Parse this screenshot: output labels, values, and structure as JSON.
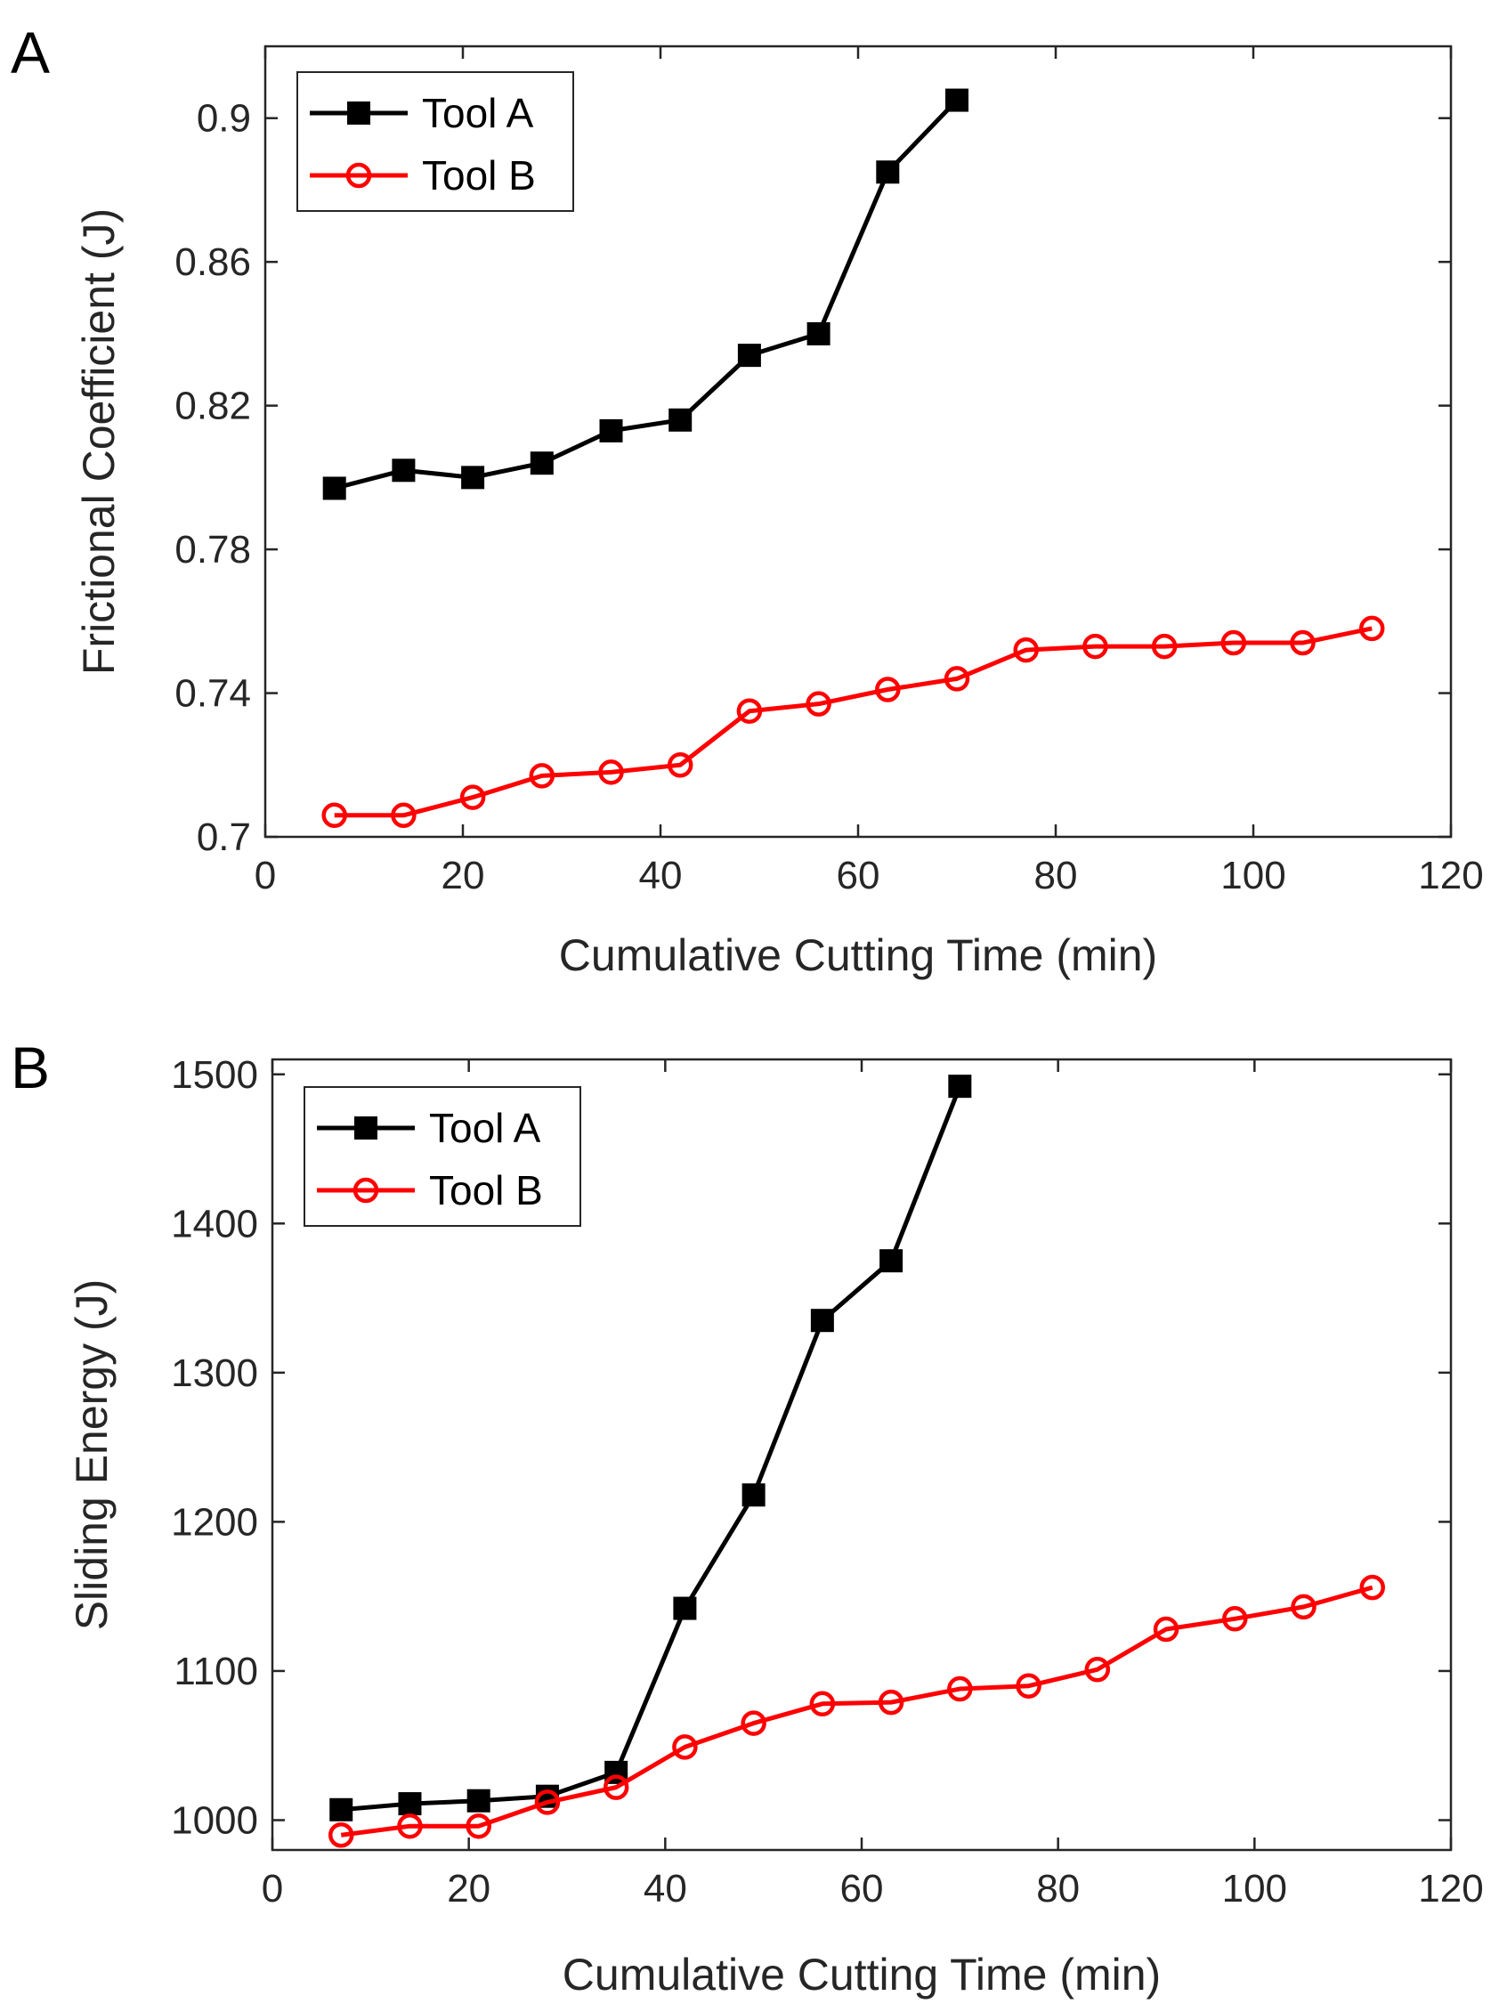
{
  "chart_data": [
    {
      "type": "line",
      "panel_label": "A",
      "title": "",
      "xlabel": "Cumulative Cutting Time (min)",
      "ylabel": "Frictional Coefficient (J)",
      "xlim": [
        0,
        120
      ],
      "ylim": [
        0.7,
        0.92
      ],
      "xticks": [
        0,
        20,
        40,
        60,
        80,
        100,
        120
      ],
      "xtick_labels": [
        "0",
        "20",
        "40",
        "60",
        "80",
        "100",
        "120"
      ],
      "yticks": [
        0.7,
        0.74,
        0.78,
        0.82,
        0.86,
        0.9
      ],
      "ytick_labels": [
        "0.7",
        "0.74",
        "0.78",
        "0.82",
        "0.86",
        "0.9"
      ],
      "grid": false,
      "legend_position": "top-left",
      "series": [
        {
          "name": "Tool A",
          "color": "#000000",
          "marker": "square",
          "x": [
            7,
            14,
            21,
            28,
            35,
            42,
            49,
            56,
            63,
            70
          ],
          "values": [
            0.797,
            0.802,
            0.8,
            0.804,
            0.813,
            0.816,
            0.834,
            0.84,
            0.885,
            0.905
          ]
        },
        {
          "name": "Tool B",
          "color": "#ff0000",
          "marker": "circle",
          "x": [
            7,
            14,
            21,
            28,
            35,
            42,
            49,
            56,
            63,
            70,
            77,
            84,
            91,
            98,
            105,
            112
          ],
          "values": [
            0.706,
            0.706,
            0.711,
            0.717,
            0.718,
            0.72,
            0.735,
            0.737,
            0.741,
            0.744,
            0.752,
            0.753,
            0.753,
            0.754,
            0.754,
            0.758
          ]
        }
      ]
    },
    {
      "type": "line",
      "panel_label": "B",
      "title": "",
      "xlabel": "Cumulative Cutting Time (min)",
      "ylabel": "Sliding Energy (J)",
      "xlim": [
        0,
        120
      ],
      "ylim": [
        980,
        1510
      ],
      "xticks": [
        0,
        20,
        40,
        60,
        80,
        100,
        120
      ],
      "xtick_labels": [
        "0",
        "20",
        "40",
        "60",
        "80",
        "100",
        "120"
      ],
      "yticks": [
        1000,
        1100,
        1200,
        1300,
        1400,
        1500
      ],
      "ytick_labels": [
        "1000",
        "1100",
        "1200",
        "1300",
        "1400",
        "1500"
      ],
      "grid": false,
      "legend_position": "top-left",
      "series": [
        {
          "name": "Tool A",
          "color": "#000000",
          "marker": "square",
          "x": [
            7,
            14,
            21,
            28,
            35,
            42,
            49,
            56,
            63,
            70
          ],
          "values": [
            1007,
            1011,
            1013,
            1016,
            1032,
            1142,
            1218,
            1335,
            1375,
            1492
          ]
        },
        {
          "name": "Tool B",
          "color": "#ff0000",
          "marker": "circle",
          "x": [
            7,
            14,
            21,
            28,
            35,
            42,
            49,
            56,
            63,
            70,
            77,
            84,
            91,
            98,
            105,
            112
          ],
          "values": [
            990,
            996,
            996,
            1012,
            1022,
            1049,
            1065,
            1078,
            1079,
            1088,
            1090,
            1101,
            1128,
            1135,
            1143,
            1156
          ]
        }
      ]
    }
  ]
}
